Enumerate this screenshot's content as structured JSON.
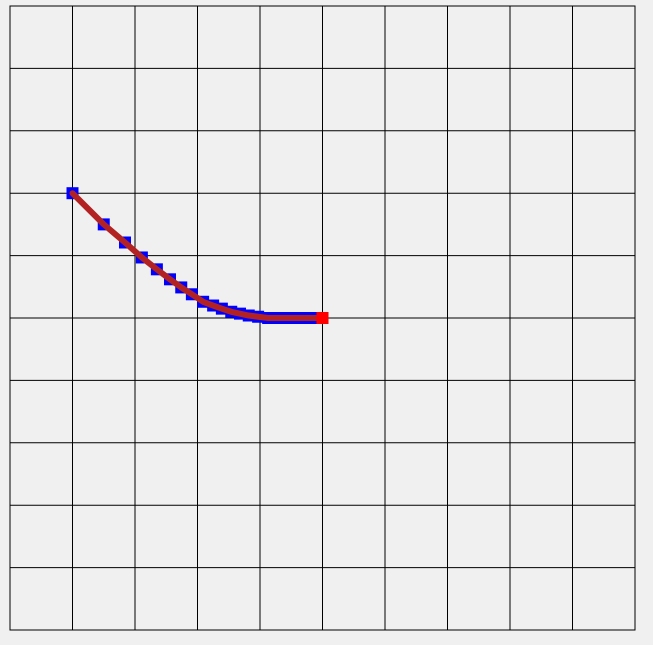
{
  "grid": {
    "cols": 10,
    "rows": 10,
    "background": "#f0f0f0",
    "line_color": "#000000"
  },
  "path": {
    "marker_color": "#0000ff",
    "line_color": "#b22222",
    "points": [
      [
        1,
        3
      ],
      [
        1.5,
        3.5
      ],
      [
        1.84,
        3.79
      ],
      [
        2.11,
        4.03
      ],
      [
        2.35,
        4.22
      ],
      [
        2.56,
        4.38
      ],
      [
        2.74,
        4.51
      ],
      [
        2.91,
        4.62
      ],
      [
        3.09,
        4.74
      ],
      [
        3.25,
        4.8
      ],
      [
        3.39,
        4.85
      ],
      [
        3.54,
        4.9
      ],
      [
        3.68,
        4.93
      ],
      [
        3.82,
        4.96
      ],
      [
        3.97,
        4.98
      ],
      [
        4.13,
        5
      ],
      [
        4.29,
        5
      ],
      [
        4.45,
        5
      ],
      [
        4.61,
        5
      ],
      [
        4.77,
        5
      ],
      [
        4.9,
        5
      ]
    ]
  },
  "target": {
    "point": [
      5,
      5
    ],
    "color": "#ff0000"
  }
}
